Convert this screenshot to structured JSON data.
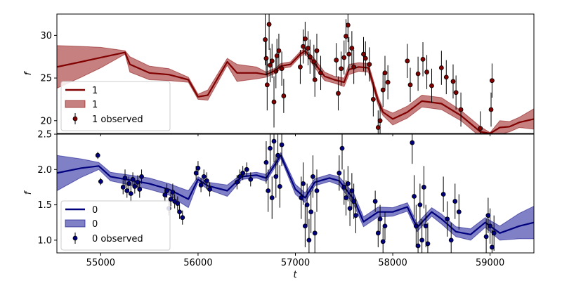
{
  "chart_data": [
    {
      "type": "line",
      "panel": "top",
      "xlabel": "",
      "ylabel": "f",
      "xlim": [
        54550,
        59450
      ],
      "ylim": [
        18.5,
        32.5
      ],
      "yticks": [
        20,
        25,
        30
      ],
      "grid": false,
      "legend": {
        "placement": "lower-left",
        "entries": [
          "1",
          "1",
          "1 observed"
        ]
      },
      "colors": {
        "line": "#800000",
        "band": "#a83c3c",
        "points": "#800000"
      },
      "series": [
        {
          "name": "1",
          "kind": "model-line",
          "x": [
            54550,
            54800,
            55000,
            55250,
            55300,
            55500,
            55700,
            55900,
            56000,
            56100,
            56300,
            56400,
            56600,
            56700,
            56800,
            56850,
            56950,
            57050,
            57100,
            57200,
            57300,
            57400,
            57500,
            57550,
            57650,
            57750,
            57850,
            57900,
            58000,
            58150,
            58300,
            58500,
            58700,
            58900,
            59000,
            59100,
            59200,
            59300,
            59450
          ],
          "y": [
            26.3,
            26.9,
            27.4,
            28.0,
            26.6,
            25.6,
            25.4,
            24.8,
            22.8,
            23.0,
            26.9,
            25.6,
            25.6,
            25.4,
            25.9,
            26.4,
            26.6,
            27.8,
            28.2,
            26.7,
            25.2,
            24.8,
            24.5,
            26.0,
            26.3,
            26.2,
            22.3,
            21.0,
            20.2,
            21.0,
            22.3,
            22.0,
            20.6,
            18.7,
            18.5,
            19.2,
            19.3,
            19.8,
            20.2
          ]
        },
        {
          "name": "1",
          "kind": "uncertainty-band",
          "x": [
            54550,
            54800,
            55000,
            55250,
            55300,
            55500,
            55700,
            55900,
            56000,
            56100,
            56300,
            56400,
            56600,
            56700,
            56800,
            56850,
            56950,
            57050,
            57100,
            57200,
            57300,
            57400,
            57500,
            57550,
            57650,
            57750,
            57850,
            57900,
            58000,
            58150,
            58300,
            58500,
            58700,
            58900,
            59000,
            59100,
            59200,
            59300,
            59450
          ],
          "upper": [
            28.8,
            28.7,
            28.6,
            28.2,
            27.5,
            26.4,
            26.1,
            25.1,
            23.1,
            23.6,
            27.3,
            26.6,
            26.3,
            25.7,
            26.2,
            26.7,
            26.9,
            28.1,
            28.5,
            27.2,
            25.7,
            25.2,
            25.0,
            26.6,
            26.8,
            26.7,
            22.8,
            21.4,
            20.9,
            21.7,
            23.0,
            22.7,
            21.2,
            19.3,
            18.6,
            20.0,
            19.9,
            20.4,
            21.4
          ],
          "lower": [
            23.8,
            25.1,
            26.2,
            27.8,
            25.7,
            24.8,
            24.7,
            24.5,
            22.5,
            22.4,
            26.5,
            24.6,
            24.9,
            25.1,
            25.6,
            26.1,
            26.3,
            27.5,
            27.9,
            26.2,
            24.7,
            24.4,
            24.0,
            25.4,
            25.8,
            25.7,
            21.8,
            20.6,
            19.5,
            20.3,
            21.6,
            21.3,
            20.0,
            18.1,
            18.4,
            18.4,
            18.7,
            19.2,
            19.0
          ]
        },
        {
          "name": "1 observed",
          "kind": "observed-points",
          "x": [
            56690,
            56700,
            56710,
            56730,
            56740,
            56760,
            56780,
            56800,
            56810,
            56830,
            56860,
            56880,
            57050,
            57080,
            57100,
            57130,
            57150,
            57190,
            57200,
            57220,
            57260,
            57420,
            57440,
            57470,
            57500,
            57520,
            57540,
            57550,
            57580,
            57600,
            57700,
            57720,
            57760,
            57800,
            57850,
            57870,
            57900,
            57920,
            57950,
            58150,
            58180,
            58260,
            58310,
            58350,
            58400,
            58500,
            58550,
            58620,
            58650,
            58700,
            58900,
            59010,
            59020
          ],
          "y": [
            29.5,
            27.3,
            24.2,
            31.3,
            26.5,
            27.0,
            22.2,
            25.8,
            27.6,
            28.2,
            26.1,
            22.9,
            26.3,
            28.7,
            29.6,
            28.5,
            27.5,
            26.9,
            24.8,
            28.2,
            25.6,
            27.1,
            23.2,
            26.1,
            27.4,
            29.9,
            31.2,
            27.8,
            28.5,
            26.3,
            27.8,
            27.3,
            26.6,
            22.5,
            19.2,
            20.0,
            23.6,
            25.6,
            24.5,
            27.0,
            24.2,
            25.5,
            27.2,
            25.7,
            24.1,
            26.2,
            25.1,
            24.6,
            23.3,
            21.3,
            19.1,
            21.3,
            24.7
          ],
          "err": [
            3.0,
            2.0,
            3.0,
            3.0,
            2.0,
            2.0,
            3.0,
            2.0,
            2.0,
            2.0,
            2.0,
            2.0,
            2.0,
            2.0,
            2.0,
            2.0,
            2.0,
            2.0,
            2.0,
            2.0,
            2.0,
            2.0,
            2.0,
            2.0,
            2.0,
            2.0,
            2.0,
            2.0,
            2.0,
            2.0,
            2.0,
            2.0,
            2.0,
            2.0,
            2.0,
            2.0,
            2.0,
            2.0,
            2.0,
            2.0,
            2.0,
            2.0,
            2.0,
            2.0,
            2.0,
            2.0,
            2.0,
            2.0,
            2.0,
            2.0,
            2.0,
            2.0,
            2.0
          ]
        }
      ]
    },
    {
      "type": "line",
      "panel": "bottom",
      "xlabel": "t",
      "ylabel": "f",
      "xlim": [
        54550,
        59450
      ],
      "ylim": [
        0.82,
        2.5
      ],
      "yticks": [
        1.0,
        1.5,
        2.0,
        2.5
      ],
      "xticks": [
        55000,
        56000,
        57000,
        58000,
        59000
      ],
      "grid": false,
      "legend": {
        "placement": "lower-left",
        "entries": [
          "0",
          "0",
          "0 observed"
        ]
      },
      "colors": {
        "line": "#00007f",
        "band": "#3c3ca8",
        "points": "#00007f"
      },
      "series": [
        {
          "name": "0",
          "kind": "model-line",
          "x": [
            54550,
            54800,
            54980,
            55100,
            55300,
            55500,
            55700,
            55900,
            56000,
            56100,
            56300,
            56450,
            56600,
            56700,
            56850,
            57000,
            57100,
            57200,
            57350,
            57450,
            57600,
            57700,
            57850,
            58000,
            58150,
            58250,
            58400,
            58500,
            58650,
            58800,
            58950,
            59100,
            59300,
            59450
          ],
          "y": [
            1.95,
            2.02,
            2.05,
            1.9,
            1.85,
            1.8,
            1.72,
            1.58,
            1.86,
            1.77,
            1.7,
            1.9,
            1.92,
            1.88,
            2.2,
            1.72,
            1.6,
            1.82,
            1.88,
            1.84,
            1.58,
            1.26,
            1.4,
            1.4,
            1.47,
            1.18,
            1.4,
            1.3,
            1.12,
            1.08,
            1.25,
            1.1,
            1.2,
            1.25
          ]
        },
        {
          "name": "0",
          "kind": "uncertainty-band",
          "x": [
            54550,
            54800,
            54980,
            55100,
            55300,
            55500,
            55700,
            55900,
            56000,
            56100,
            56300,
            56450,
            56600,
            56700,
            56850,
            57000,
            57100,
            57200,
            57350,
            57450,
            57600,
            57700,
            57850,
            58000,
            58150,
            58250,
            58400,
            58500,
            58650,
            58800,
            58950,
            59100,
            59300,
            59450
          ],
          "upper": [
            2.2,
            2.15,
            2.1,
            1.96,
            1.92,
            1.88,
            1.8,
            1.7,
            1.9,
            1.82,
            1.78,
            1.94,
            1.96,
            1.93,
            2.24,
            1.79,
            1.67,
            1.87,
            1.93,
            1.9,
            1.66,
            1.33,
            1.47,
            1.46,
            1.53,
            1.24,
            1.46,
            1.37,
            1.19,
            1.16,
            1.32,
            1.2,
            1.38,
            1.48
          ],
          "lower": [
            1.7,
            1.89,
            2.0,
            1.84,
            1.78,
            1.72,
            1.64,
            1.46,
            1.82,
            1.72,
            1.62,
            1.86,
            1.88,
            1.83,
            2.16,
            1.65,
            1.53,
            1.77,
            1.83,
            1.78,
            1.5,
            1.19,
            1.33,
            1.34,
            1.41,
            1.12,
            1.34,
            1.23,
            1.05,
            1.0,
            1.18,
            1.0,
            1.02,
            1.02
          ]
        },
        {
          "name": "0 observed",
          "kind": "observed-points",
          "x": [
            54970,
            55000,
            55230,
            55250,
            55270,
            55290,
            55310,
            55330,
            55350,
            55380,
            55400,
            55420,
            55660,
            55680,
            55700,
            55720,
            55740,
            55760,
            55790,
            55810,
            55840,
            55980,
            56000,
            56030,
            56060,
            56090,
            56120,
            56400,
            56430,
            56460,
            56500,
            56540,
            56700,
            56720,
            56740,
            56760,
            56780,
            56800,
            56820,
            56840,
            56860,
            57060,
            57080,
            57100,
            57120,
            57140,
            57160,
            57180,
            57200,
            57220,
            57450,
            57480,
            57500,
            57520,
            57540,
            57560,
            57580,
            57600,
            57620,
            57820,
            57850,
            57870,
            57900,
            57920,
            58200,
            58220,
            58240,
            58260,
            58280,
            58300,
            58320,
            58340,
            58360,
            58520,
            58560,
            58600,
            58640,
            58680,
            58960,
            58980,
            59000,
            59020,
            59040
          ],
          "y": [
            2.2,
            1.83,
            1.75,
            1.88,
            1.7,
            1.8,
            1.66,
            1.86,
            1.76,
            1.82,
            1.72,
            1.9,
            1.64,
            1.7,
            1.45,
            1.58,
            1.68,
            1.55,
            1.52,
            1.4,
            1.32,
            1.95,
            2.02,
            1.78,
            1.9,
            1.84,
            1.72,
            1.82,
            1.9,
            1.95,
            2.0,
            1.86,
            2.1,
            1.7,
            2.3,
            1.6,
            2.4,
            1.9,
            2.2,
            1.76,
            2.35,
            1.6,
            1.8,
            1.2,
            1.5,
            1.0,
            1.4,
            1.9,
            1.1,
            1.7,
            1.95,
            2.3,
            1.75,
            1.6,
            1.8,
            1.45,
            1.7,
            1.55,
            1.35,
            1.55,
            1.1,
            1.3,
            0.98,
            1.2,
            2.38,
            1.62,
            1.2,
            0.92,
            1.5,
            1.0,
            1.75,
            1.2,
            0.95,
            1.65,
            1.3,
            1.0,
            1.55,
            1.4,
            1.05,
            1.35,
            1.2,
            0.9,
            1.1
          ],
          "err": [
            0.05,
            0.05,
            0.1,
            0.12,
            0.1,
            0.1,
            0.12,
            0.1,
            0.1,
            0.1,
            0.12,
            0.1,
            0.1,
            0.1,
            0.1,
            0.1,
            0.12,
            0.1,
            0.1,
            0.1,
            0.1,
            0.1,
            0.1,
            0.1,
            0.1,
            0.12,
            0.1,
            0.1,
            0.1,
            0.1,
            0.1,
            0.1,
            0.3,
            0.3,
            0.3,
            0.3,
            0.3,
            0.3,
            0.3,
            0.3,
            0.3,
            0.3,
            0.3,
            0.3,
            0.3,
            0.3,
            0.3,
            0.3,
            0.3,
            0.3,
            0.25,
            0.3,
            0.25,
            0.25,
            0.25,
            0.25,
            0.25,
            0.25,
            0.25,
            0.15,
            0.2,
            0.2,
            0.2,
            0.2,
            0.3,
            0.3,
            0.3,
            0.3,
            0.3,
            0.3,
            0.3,
            0.3,
            0.3,
            0.25,
            0.25,
            0.25,
            0.25,
            0.25,
            0.25,
            0.25,
            0.25,
            0.25,
            0.25
          ]
        }
      ]
    }
  ]
}
